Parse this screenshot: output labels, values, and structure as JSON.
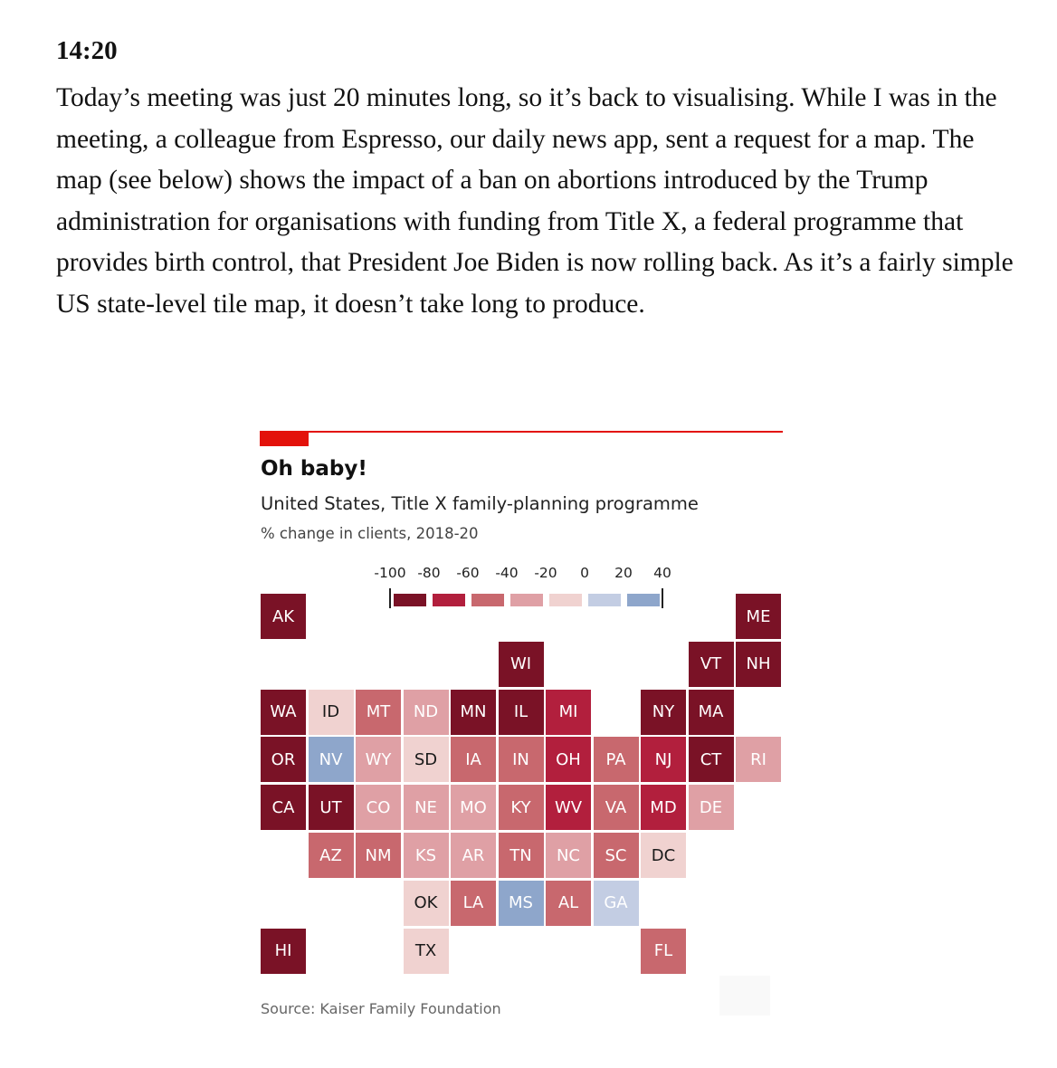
{
  "article": {
    "time": "14:20",
    "paragraph": "Today’s meeting was just 20 minutes long, so it’s back to visualising. While I was in the meeting, a colleague from Espresso, our daily news app, sent a request for a map. The map (see below) shows the impact of a ban on abortions introduced by the Trump administration for organisations with funding from Title X, a federal programme that provides birth control, that President Joe Biden is now rolling back. As it’s a fairly simple US state-level tile map, it doesn’t take long to produce."
  },
  "colors": {
    "accent": "#e3120b",
    "bins": [
      "#7a1226",
      "#b21f3d",
      "#c8686e",
      "#dfa0a5",
      "#f0d2d0",
      "#c3cde3",
      "#8ea6cb"
    ]
  },
  "chart_data": {
    "type": "heatmap",
    "title": "Oh baby!",
    "subtitle": "United States, Title X family-planning programme",
    "unit_label": "% change in clients, 2018-20",
    "source": "Source: Kaiser Family Foundation",
    "legend": {
      "ticks": [
        "-100",
        "-80",
        "-60",
        "-40",
        "-20",
        "0",
        "20",
        "40"
      ],
      "bins": [
        "-100 to -80",
        "-80 to -60",
        "-60 to -40",
        "-40 to -20",
        "-20 to 0",
        "0 to 20",
        "20 to 40"
      ]
    },
    "tiles": [
      {
        "state": "AK",
        "col": 0,
        "row": 0,
        "bin": 0
      },
      {
        "state": "ME",
        "col": 10,
        "row": 0,
        "bin": 0
      },
      {
        "state": "WI",
        "col": 5,
        "row": 1,
        "bin": 0
      },
      {
        "state": "VT",
        "col": 9,
        "row": 1,
        "bin": 0
      },
      {
        "state": "NH",
        "col": 10,
        "row": 1,
        "bin": 0
      },
      {
        "state": "WA",
        "col": 0,
        "row": 2,
        "bin": 0
      },
      {
        "state": "ID",
        "col": 1,
        "row": 2,
        "bin": 4
      },
      {
        "state": "MT",
        "col": 2,
        "row": 2,
        "bin": 2
      },
      {
        "state": "ND",
        "col": 3,
        "row": 2,
        "bin": 3
      },
      {
        "state": "MN",
        "col": 4,
        "row": 2,
        "bin": 0
      },
      {
        "state": "IL",
        "col": 5,
        "row": 2,
        "bin": 0
      },
      {
        "state": "MI",
        "col": 6,
        "row": 2,
        "bin": 1
      },
      {
        "state": "NY",
        "col": 8,
        "row": 2,
        "bin": 0
      },
      {
        "state": "MA",
        "col": 9,
        "row": 2,
        "bin": 0
      },
      {
        "state": "OR",
        "col": 0,
        "row": 3,
        "bin": 0
      },
      {
        "state": "NV",
        "col": 1,
        "row": 3,
        "bin": 6
      },
      {
        "state": "WY",
        "col": 2,
        "row": 3,
        "bin": 3
      },
      {
        "state": "SD",
        "col": 3,
        "row": 3,
        "bin": 4
      },
      {
        "state": "IA",
        "col": 4,
        "row": 3,
        "bin": 2
      },
      {
        "state": "IN",
        "col": 5,
        "row": 3,
        "bin": 2
      },
      {
        "state": "OH",
        "col": 6,
        "row": 3,
        "bin": 1
      },
      {
        "state": "PA",
        "col": 7,
        "row": 3,
        "bin": 2
      },
      {
        "state": "NJ",
        "col": 8,
        "row": 3,
        "bin": 1
      },
      {
        "state": "CT",
        "col": 9,
        "row": 3,
        "bin": 0
      },
      {
        "state": "RI",
        "col": 10,
        "row": 3,
        "bin": 3
      },
      {
        "state": "CA",
        "col": 0,
        "row": 4,
        "bin": 0
      },
      {
        "state": "UT",
        "col": 1,
        "row": 4,
        "bin": 0
      },
      {
        "state": "CO",
        "col": 2,
        "row": 4,
        "bin": 3
      },
      {
        "state": "NE",
        "col": 3,
        "row": 4,
        "bin": 3
      },
      {
        "state": "MO",
        "col": 4,
        "row": 4,
        "bin": 3
      },
      {
        "state": "KY",
        "col": 5,
        "row": 4,
        "bin": 2
      },
      {
        "state": "WV",
        "col": 6,
        "row": 4,
        "bin": 1
      },
      {
        "state": "VA",
        "col": 7,
        "row": 4,
        "bin": 2
      },
      {
        "state": "MD",
        "col": 8,
        "row": 4,
        "bin": 1
      },
      {
        "state": "DE",
        "col": 9,
        "row": 4,
        "bin": 3
      },
      {
        "state": "AZ",
        "col": 1,
        "row": 5,
        "bin": 2
      },
      {
        "state": "NM",
        "col": 2,
        "row": 5,
        "bin": 2
      },
      {
        "state": "KS",
        "col": 3,
        "row": 5,
        "bin": 3
      },
      {
        "state": "AR",
        "col": 4,
        "row": 5,
        "bin": 3
      },
      {
        "state": "TN",
        "col": 5,
        "row": 5,
        "bin": 2
      },
      {
        "state": "NC",
        "col": 6,
        "row": 5,
        "bin": 3
      },
      {
        "state": "SC",
        "col": 7,
        "row": 5,
        "bin": 2
      },
      {
        "state": "DC",
        "col": 8,
        "row": 5,
        "bin": 4
      },
      {
        "state": "OK",
        "col": 3,
        "row": 6,
        "bin": 4
      },
      {
        "state": "LA",
        "col": 4,
        "row": 6,
        "bin": 2
      },
      {
        "state": "MS",
        "col": 5,
        "row": 6,
        "bin": 6
      },
      {
        "state": "AL",
        "col": 6,
        "row": 6,
        "bin": 2
      },
      {
        "state": "GA",
        "col": 7,
        "row": 6,
        "bin": 5
      },
      {
        "state": "HI",
        "col": 0,
        "row": 7,
        "bin": 0
      },
      {
        "state": "TX",
        "col": 3,
        "row": 7,
        "bin": 4
      },
      {
        "state": "FL",
        "col": 8,
        "row": 7,
        "bin": 2
      }
    ]
  }
}
